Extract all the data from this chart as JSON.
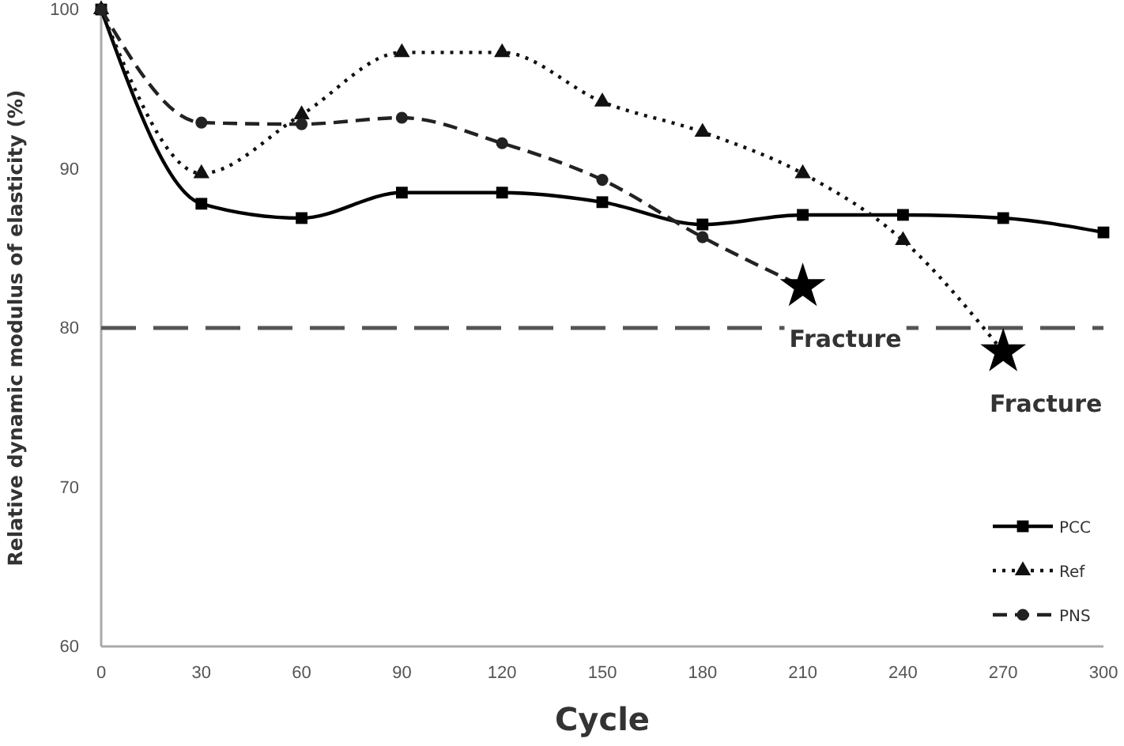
{
  "chart_data": {
    "type": "line",
    "xlabel": "Cycle",
    "ylabel": "Relative dynamic modulus of elasticity (%)",
    "x": [
      0,
      30,
      60,
      90,
      120,
      150,
      180,
      210,
      240,
      270,
      300
    ],
    "xlim": [
      0,
      300
    ],
    "xticks": [
      0,
      30,
      60,
      90,
      120,
      150,
      180,
      210,
      240,
      270,
      300
    ],
    "ylim": [
      60,
      100
    ],
    "yticks": [
      60,
      70,
      80,
      90,
      100
    ],
    "grid": false,
    "legend": "bottom right",
    "series": [
      {
        "name": "PCC",
        "color": "#000000",
        "marker": "square",
        "line_style": "solid",
        "values": [
          100,
          87.8,
          86.9,
          88.5,
          88.5,
          87.9,
          86.5,
          87.1,
          87.1,
          86.9,
          86.0
        ]
      },
      {
        "name": "Ref",
        "color": "#111111",
        "marker": "triangle",
        "line_style": "dotted",
        "values": [
          100,
          89.7,
          93.4,
          97.3,
          97.3,
          94.2,
          92.3,
          89.7,
          85.5,
          78.5,
          null
        ]
      },
      {
        "name": "PNS",
        "color": "#222222",
        "marker": "circle",
        "line_style": "dashed",
        "values": [
          100,
          92.9,
          92.8,
          93.2,
          91.6,
          89.3,
          85.7,
          82.6,
          null,
          null,
          null
        ]
      },
      {
        "type": "scatter",
        "color": "#000000",
        "marker": "star",
        "x": [
          210,
          270
        ],
        "values": [
          82.6,
          78.5
        ]
      }
    ],
    "ref_lines": [
      {
        "axis": "y",
        "value": 80,
        "color": "#555555",
        "line_style": "dashed"
      }
    ],
    "annotations": [
      {
        "text": "Fracture",
        "x": 210,
        "y": 82.6
      },
      {
        "text": "Fracture",
        "x": 270,
        "y": 78.5
      }
    ]
  }
}
